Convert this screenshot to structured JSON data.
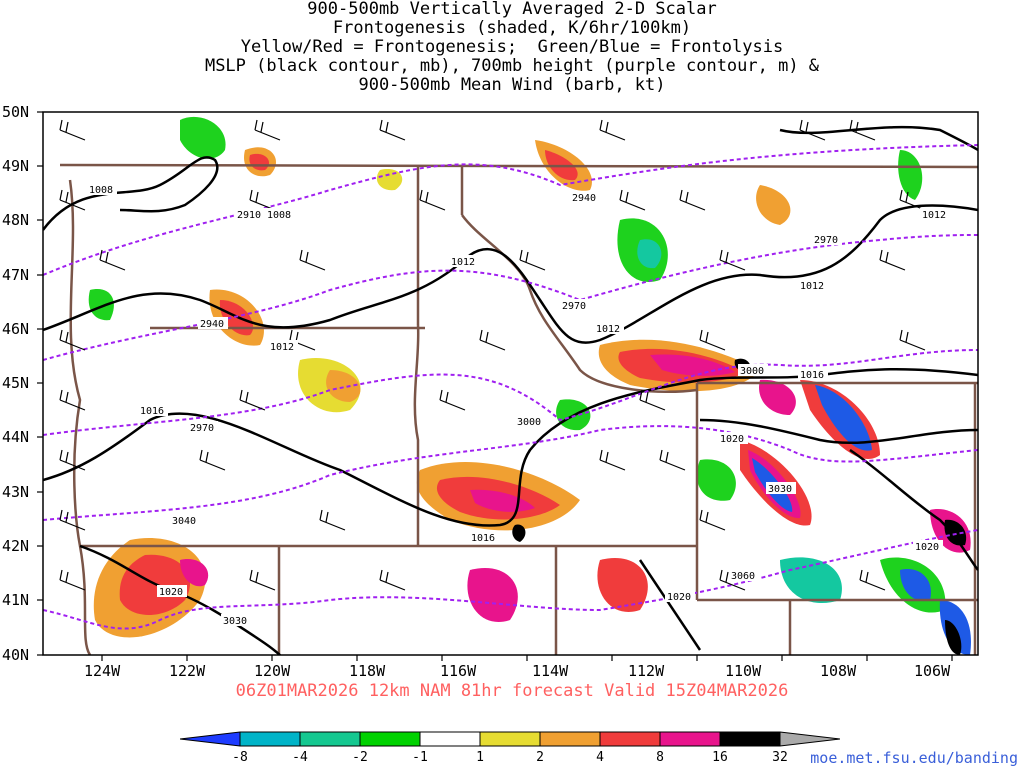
{
  "title": {
    "lines": [
      "900-500mb Vertically Averaged 2-D Scalar",
      "Frontogenesis (shaded, K/6hr/100km)",
      "Yellow/Red = Frontogenesis;  Green/Blue = Frontolysis",
      "MSLP (black contour, mb), 700mb height (purple contour, m) &",
      "900-500mb Mean Wind (barb, kt)"
    ]
  },
  "map": {
    "lat_labels": [
      "50N",
      "49N",
      "48N",
      "47N",
      "46N",
      "45N",
      "44N",
      "43N",
      "42N",
      "41N",
      "40N"
    ],
    "lon_labels": [
      "124W",
      "122W",
      "120W",
      "118W",
      "116W",
      "114W",
      "112W",
      "110W",
      "108W",
      "106W"
    ],
    "mslp_labels": [
      "1008",
      "1008",
      "1012",
      "1012",
      "1012",
      "1012",
      "1012",
      "1016",
      "1016",
      "1016",
      "1020",
      "1020",
      "1020"
    ],
    "height_labels": [
      "2910",
      "2940",
      "2940",
      "2970",
      "2970",
      "2970",
      "3000",
      "3000",
      "3030",
      "3030",
      "3040",
      "3060"
    ],
    "colors": {
      "frontogenesis_weak": "#e6dc32",
      "frontogenesis_mod": "#f0a032",
      "frontogenesis_strong": "#f03c3c",
      "frontogenesis_vstrong": "#e8148c",
      "frontogenesis_extreme": "#000000",
      "frontolysis_weak": "#1ed21e",
      "frontolysis_mod": "#14c8a0",
      "frontolysis_strong": "#1e5ae6",
      "mslp_contour": "#000000",
      "height_contour": "#a020f0",
      "border": "#7a5548"
    }
  },
  "forecast": {
    "text": "06Z01MAR2026 12km NAM 81hr forecast Valid 15Z04MAR2026"
  },
  "colorbar": {
    "ticks": [
      "-8",
      "-4",
      "-2",
      "-1",
      "1",
      "2",
      "4",
      "8",
      "16",
      "32"
    ],
    "colors": [
      "#1e3cff",
      "#00b4c8",
      "#14c890",
      "#00d200",
      "#ffffff",
      "#e6dc32",
      "#f0a032",
      "#f03c3c",
      "#e8148c",
      "#000000",
      "#aaaaaa"
    ]
  },
  "credit": "moe.met.fsu.edu/banding"
}
